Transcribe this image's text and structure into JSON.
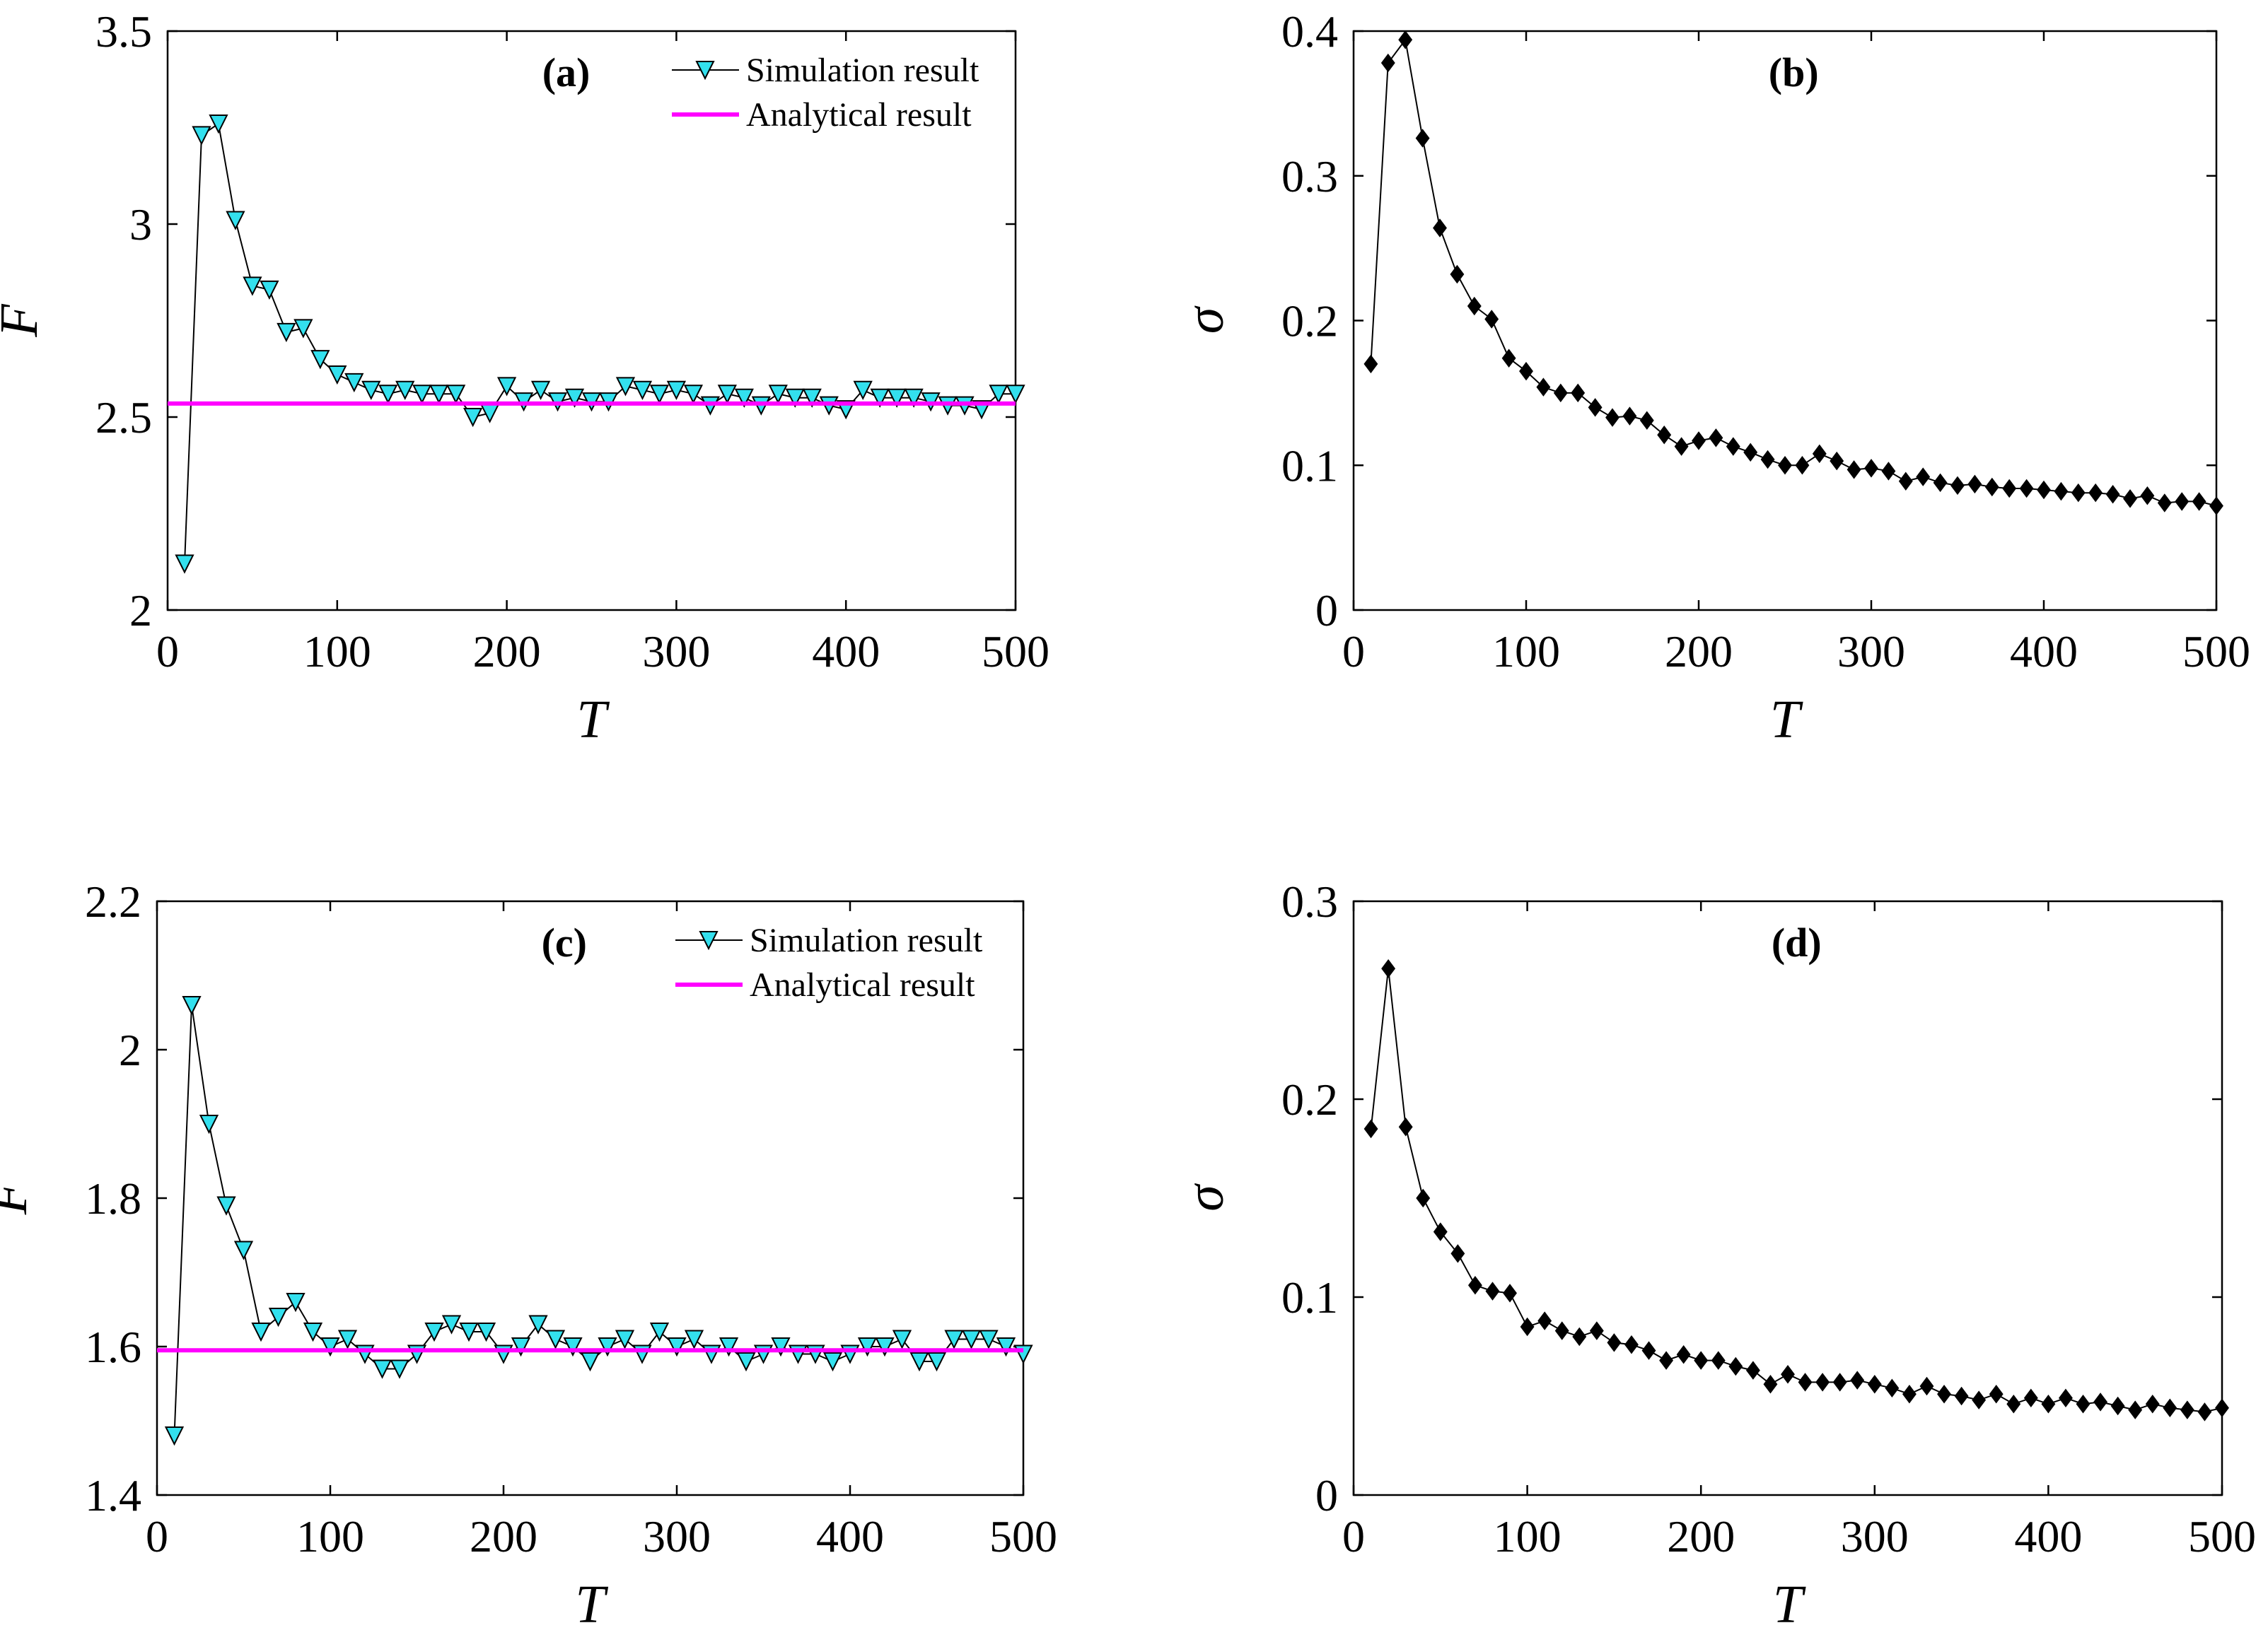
{
  "chart_data": [
    {
      "type": "line",
      "panel": "(a)",
      "xlabel": "T",
      "ylabel": "F",
      "xlim": [
        0,
        500
      ],
      "ylim": [
        2,
        3.5
      ],
      "xticks": [
        "0",
        "100",
        "200",
        "300",
        "400",
        "500"
      ],
      "yticks": [
        "2",
        "2.5",
        "3",
        "3.5"
      ],
      "legend": {
        "location": "top-right",
        "entries": [
          "Simulation result",
          "Analytical result"
        ]
      },
      "series": [
        {
          "name": "Simulation result",
          "marker": "triangle-down",
          "color": "#000000",
          "marker_fill": "#33e0ee",
          "x": [
            10,
            20,
            30,
            40,
            50,
            60,
            70,
            80,
            90,
            100,
            110,
            120,
            130,
            140,
            150,
            160,
            170,
            180,
            190,
            200,
            210,
            220,
            230,
            240,
            250,
            260,
            270,
            280,
            290,
            300,
            310,
            320,
            330,
            340,
            350,
            360,
            370,
            380,
            390,
            400,
            410,
            420,
            430,
            440,
            450,
            460,
            470,
            480,
            490,
            500
          ],
          "y": [
            2.12,
            3.23,
            3.26,
            3.01,
            2.84,
            2.83,
            2.72,
            2.73,
            2.65,
            2.61,
            2.59,
            2.57,
            2.56,
            2.57,
            2.56,
            2.56,
            2.56,
            2.5,
            2.51,
            2.58,
            2.54,
            2.57,
            2.54,
            2.55,
            2.54,
            2.54,
            2.58,
            2.57,
            2.56,
            2.57,
            2.56,
            2.53,
            2.56,
            2.55,
            2.53,
            2.56,
            2.55,
            2.55,
            2.53,
            2.52,
            2.57,
            2.55,
            2.55,
            2.55,
            2.54,
            2.53,
            2.53,
            2.52,
            2.56,
            2.56
          ]
        },
        {
          "name": "Analytical result",
          "color": "#ff00ff",
          "x": [
            0,
            500
          ],
          "y": [
            2.535,
            2.535
          ]
        }
      ]
    },
    {
      "type": "line",
      "panel": "(b)",
      "xlabel": "T",
      "ylabel": "σ",
      "xlim": [
        0,
        500
      ],
      "ylim": [
        0,
        0.4
      ],
      "xticks": [
        "0",
        "100",
        "200",
        "300",
        "400",
        "500"
      ],
      "yticks": [
        "0",
        "0.1",
        "0.2",
        "0.3",
        "0.4"
      ],
      "series": [
        {
          "name": "σ",
          "marker": "diamond",
          "color": "#000000",
          "marker_fill": "#000000",
          "x": [
            10,
            20,
            30,
            40,
            50,
            60,
            70,
            80,
            90,
            100,
            110,
            120,
            130,
            140,
            150,
            160,
            170,
            180,
            190,
            200,
            210,
            220,
            230,
            240,
            250,
            260,
            270,
            280,
            290,
            300,
            310,
            320,
            330,
            340,
            350,
            360,
            370,
            380,
            390,
            400,
            410,
            420,
            430,
            440,
            450,
            460,
            470,
            480,
            490,
            500
          ],
          "y": [
            0.17,
            0.378,
            0.394,
            0.326,
            0.264,
            0.232,
            0.21,
            0.201,
            0.174,
            0.165,
            0.154,
            0.15,
            0.15,
            0.14,
            0.133,
            0.134,
            0.131,
            0.121,
            0.113,
            0.117,
            0.119,
            0.113,
            0.109,
            0.104,
            0.1,
            0.1,
            0.108,
            0.103,
            0.097,
            0.098,
            0.096,
            0.089,
            0.092,
            0.088,
            0.086,
            0.087,
            0.085,
            0.084,
            0.084,
            0.083,
            0.082,
            0.081,
            0.081,
            0.08,
            0.077,
            0.079,
            0.074,
            0.075,
            0.075,
            0.072
          ]
        }
      ]
    },
    {
      "type": "line",
      "panel": "(c)",
      "xlabel": "T",
      "ylabel": "F",
      "xlim": [
        0,
        500
      ],
      "ylim": [
        1.4,
        2.2
      ],
      "xticks": [
        "0",
        "100",
        "200",
        "300",
        "400",
        "500"
      ],
      "yticks": [
        "1.4",
        "1.6",
        "1.8",
        "2",
        "2.2"
      ],
      "legend": {
        "location": "top-right",
        "entries": [
          "Simulation result",
          "Analytical result"
        ]
      },
      "series": [
        {
          "name": "Simulation result",
          "marker": "triangle-down",
          "color": "#000000",
          "marker_fill": "#33e0ee",
          "x": [
            10,
            20,
            30,
            40,
            50,
            60,
            70,
            80,
            90,
            100,
            110,
            120,
            130,
            140,
            150,
            160,
            170,
            180,
            190,
            200,
            210,
            220,
            230,
            240,
            250,
            260,
            270,
            280,
            290,
            300,
            310,
            320,
            330,
            340,
            350,
            360,
            370,
            380,
            390,
            400,
            410,
            420,
            430,
            440,
            450,
            460,
            470,
            480,
            490,
            500
          ],
          "y": [
            1.48,
            2.06,
            1.9,
            1.79,
            1.73,
            1.62,
            1.64,
            1.66,
            1.62,
            1.6,
            1.61,
            1.59,
            1.57,
            1.57,
            1.59,
            1.62,
            1.63,
            1.62,
            1.62,
            1.59,
            1.6,
            1.63,
            1.61,
            1.6,
            1.58,
            1.6,
            1.61,
            1.59,
            1.62,
            1.6,
            1.61,
            1.59,
            1.6,
            1.58,
            1.59,
            1.6,
            1.59,
            1.59,
            1.58,
            1.59,
            1.6,
            1.6,
            1.61,
            1.58,
            1.58,
            1.61,
            1.61,
            1.61,
            1.6,
            1.59
          ]
        },
        {
          "name": "Analytical result",
          "color": "#ff00ff",
          "x": [
            0,
            500
          ],
          "y": [
            1.595,
            1.595
          ]
        }
      ]
    },
    {
      "type": "line",
      "panel": "(d)",
      "xlabel": "T",
      "ylabel": "σ",
      "xlim": [
        0,
        500
      ],
      "ylim": [
        0,
        0.3
      ],
      "xticks": [
        "0",
        "100",
        "200",
        "300",
        "400",
        "500"
      ],
      "yticks": [
        "0",
        "0.1",
        "0.2",
        "0.3"
      ],
      "series": [
        {
          "name": "σ",
          "marker": "diamond",
          "color": "#000000",
          "marker_fill": "#000000",
          "x": [
            10,
            20,
            30,
            40,
            50,
            60,
            70,
            80,
            90,
            100,
            110,
            120,
            130,
            140,
            150,
            160,
            170,
            180,
            190,
            200,
            210,
            220,
            230,
            240,
            250,
            260,
            270,
            280,
            290,
            300,
            310,
            320,
            330,
            340,
            350,
            360,
            370,
            380,
            390,
            400,
            410,
            420,
            430,
            440,
            450,
            460,
            470,
            480,
            490,
            500
          ],
          "y": [
            0.185,
            0.266,
            0.186,
            0.15,
            0.133,
            0.122,
            0.106,
            0.103,
            0.102,
            0.085,
            0.088,
            0.083,
            0.08,
            0.083,
            0.077,
            0.076,
            0.073,
            0.068,
            0.071,
            0.068,
            0.068,
            0.065,
            0.063,
            0.056,
            0.061,
            0.057,
            0.057,
            0.057,
            0.058,
            0.056,
            0.054,
            0.051,
            0.055,
            0.051,
            0.05,
            0.048,
            0.051,
            0.046,
            0.049,
            0.046,
            0.049,
            0.046,
            0.047,
            0.045,
            0.043,
            0.046,
            0.044,
            0.043,
            0.042,
            0.044
          ]
        }
      ]
    }
  ]
}
